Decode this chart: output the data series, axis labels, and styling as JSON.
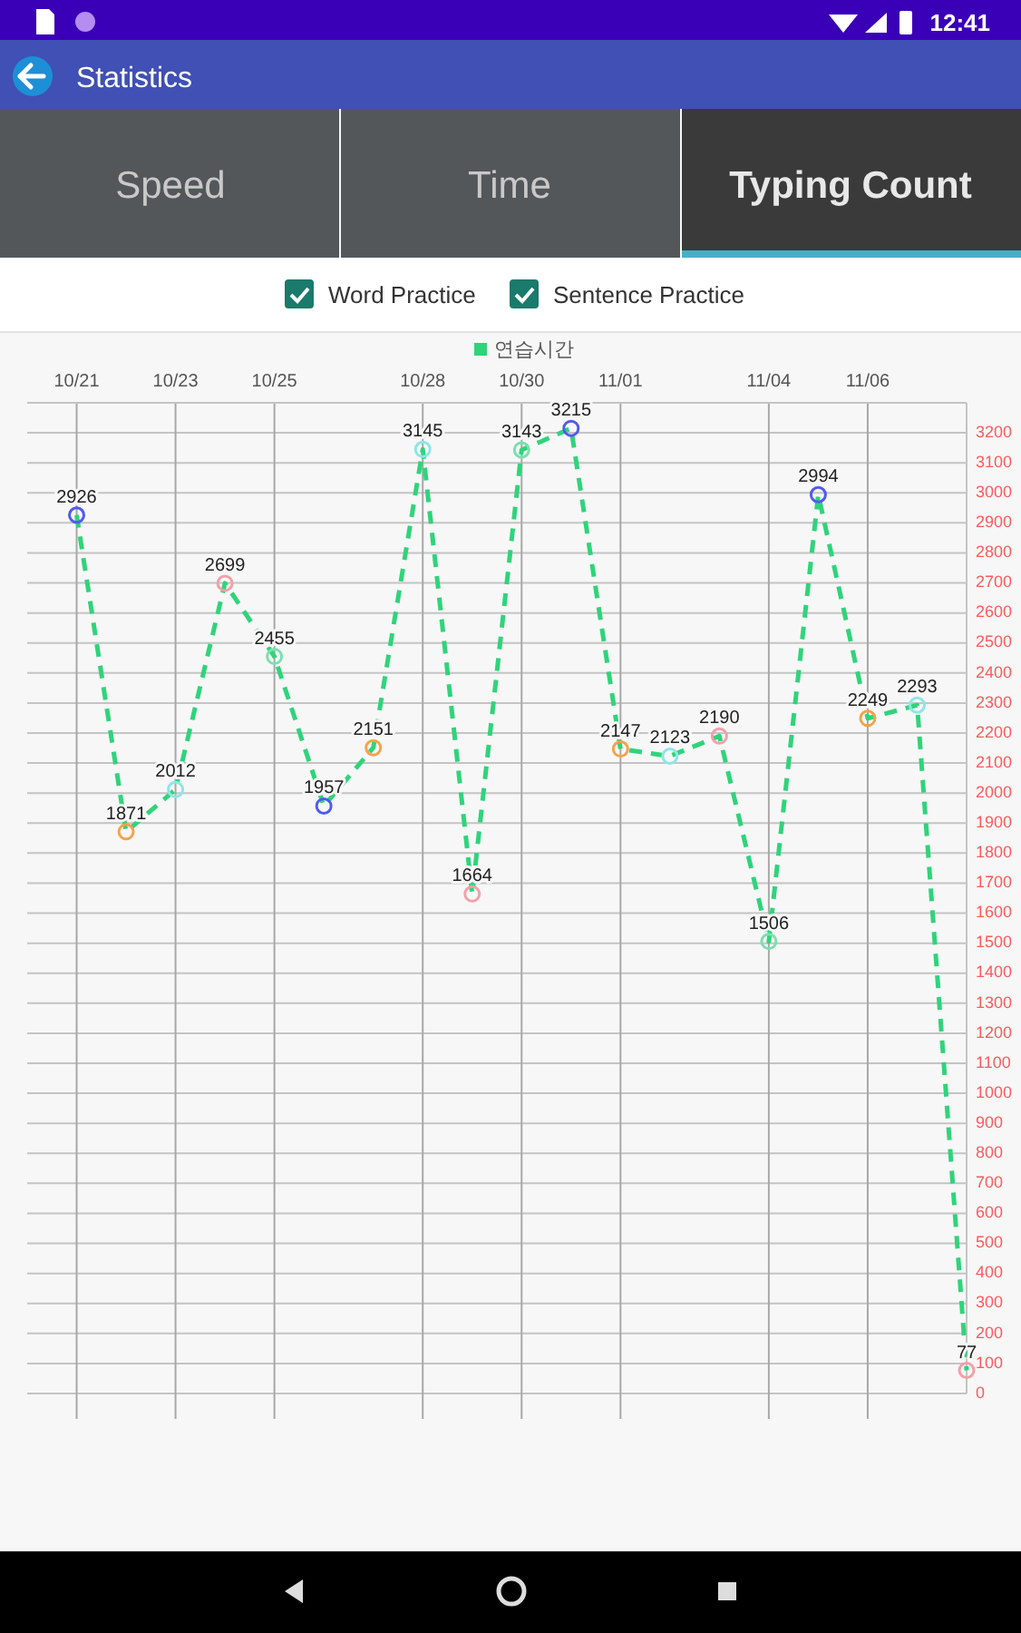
{
  "chart_data": {
    "type": "line",
    "title": "Statistics",
    "annotations": [
      "12:41",
      "Speed",
      "Time",
      "Typing Count",
      "Word Practice",
      "Sentence Practice"
    ],
    "x": [
      "--10-21",
      "--10-22",
      "--10-23",
      "--10-24",
      "--10-25",
      "--10-26",
      "--10-27",
      "--10-28",
      "--10-29",
      "--10-30",
      "--10-31",
      "--11-01",
      "--11-02",
      "--11-03",
      "--11-04",
      "--11-05",
      "--11-06",
      "--11-07",
      "--11-08"
    ],
    "series": [
      {
        "name": "연습시간",
        "color": "#2fd47a",
        "colors": [
          "#4f5bf0",
          "#f5a347",
          "#8ee6e6",
          "#f2a0a8",
          "#7be0ae",
          "#4f5bf0",
          "#f5a347",
          "#8ee6e6",
          "#f2a0a8",
          "#7be0ae",
          "#4f5bf0",
          "#f5a347",
          "#8ee6e6",
          "#f2a0a8",
          "#7be0ae",
          "#4f5bf0",
          "#f5a347",
          "#8ee6e6",
          "#f2a0a8"
        ],
        "values": [
          2926,
          1871,
          2012,
          2699,
          2455,
          1957,
          2151,
          3145,
          1664,
          3143,
          3215,
          2147,
          2123,
          2190,
          1506,
          2994,
          2249,
          2293,
          77
        ]
      }
    ],
    "xlim": [
      "--10-20",
      "--11-08"
    ],
    "xticks": [
      {
        "value": "--10-21",
        "label": "10/21"
      },
      {
        "value": "--10-23",
        "label": "10/23"
      },
      {
        "value": "--10-25",
        "label": "10/25"
      },
      {
        "value": "--10-28",
        "label": "10/28"
      },
      {
        "value": "--10-30",
        "label": "10/30"
      },
      {
        "value": "--11-01",
        "label": "11/01"
      },
      {
        "value": "--11-04",
        "label": "11/04"
      },
      {
        "value": "--11-06",
        "label": "11/06"
      }
    ],
    "ylim": [
      0,
      3300
    ],
    "yticks": [
      0,
      100,
      200,
      300,
      400,
      500,
      600,
      700,
      800,
      900,
      1000,
      1100,
      1200,
      1300,
      1400,
      1500,
      1600,
      1700,
      1800,
      1900,
      2000,
      2100,
      2200,
      2300,
      2400,
      2500,
      2600,
      2700,
      2800,
      2900,
      3000,
      3100,
      3200
    ],
    "grid": true,
    "legend": "top",
    "marker": "circle",
    "line_style": "dashed",
    "data_labels": true
  }
}
